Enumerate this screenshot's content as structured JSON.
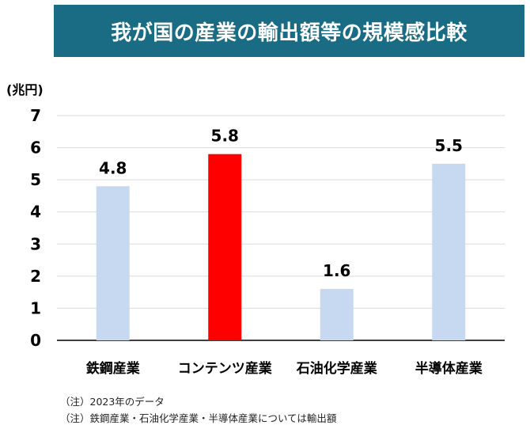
{
  "title": "我が国の産業の輸出額等の規模感比較",
  "colors": {
    "banner": "#1a6b84",
    "bar_default": "#c6d9f1",
    "bar_highlight": "#ff0000",
    "gridline": "#d9d9d9",
    "axis": "#000000"
  },
  "chart_data": {
    "type": "bar",
    "ylabel": "(兆円)",
    "ylim": [
      0,
      7
    ],
    "yticks": [
      "0",
      "1",
      "2",
      "3",
      "4",
      "5",
      "6",
      "7"
    ],
    "grid": true,
    "categories": [
      "鉄鋼産業",
      "コンテンツ産業",
      "石油化学産業",
      "半導体産業"
    ],
    "values": [
      4.8,
      5.8,
      1.6,
      5.5
    ],
    "value_labels": [
      "4.8",
      "5.8",
      "1.6",
      "5.5"
    ],
    "highlight_index": 1
  },
  "notes": [
    "（注）2023年のデータ",
    "（注）鉄鋼産業・石油化学産業・半導体産業については輸出額"
  ]
}
